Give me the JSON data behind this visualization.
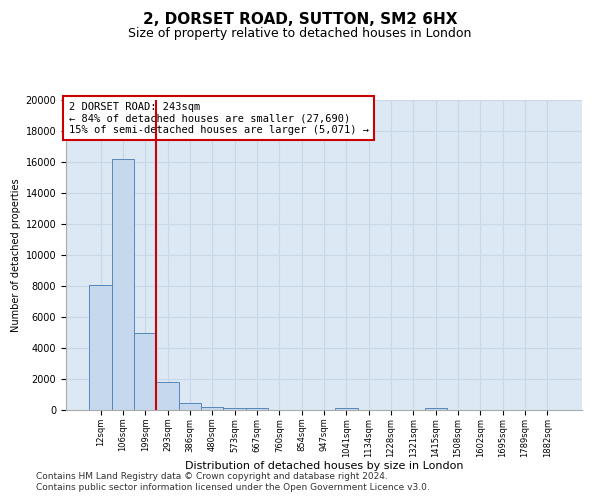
{
  "title1": "2, DORSET ROAD, SUTTON, SM2 6HX",
  "title2": "Size of property relative to detached houses in London",
  "xlabel": "Distribution of detached houses by size in London",
  "ylabel": "Number of detached properties",
  "bin_labels": [
    "12sqm",
    "106sqm",
    "199sqm",
    "293sqm",
    "386sqm",
    "480sqm",
    "573sqm",
    "667sqm",
    "760sqm",
    "854sqm",
    "947sqm",
    "1041sqm",
    "1134sqm",
    "1228sqm",
    "1321sqm",
    "1415sqm",
    "1508sqm",
    "1602sqm",
    "1695sqm",
    "1789sqm",
    "1882sqm"
  ],
  "bar_heights": [
    8050,
    16200,
    5000,
    1800,
    480,
    200,
    150,
    100,
    5,
    5,
    5,
    120,
    5,
    5,
    5,
    110,
    5,
    5,
    5,
    5,
    5
  ],
  "bar_color": "#c5d8ee",
  "bar_edge_color": "#5588bb",
  "grid_color": "#c8d8e8",
  "bg_color": "#dce8f4",
  "vline_color": "#cc0000",
  "annotation_text": "2 DORSET ROAD: 243sqm\n← 84% of detached houses are smaller (27,690)\n15% of semi-detached houses are larger (5,071) →",
  "annotation_box_color": "#ffffff",
  "annotation_box_edge": "#cc0000",
  "ylim": [
    0,
    20000
  ],
  "yticks": [
    0,
    2000,
    4000,
    6000,
    8000,
    10000,
    12000,
    14000,
    16000,
    18000,
    20000
  ],
  "footer1": "Contains HM Land Registry data © Crown copyright and database right 2024.",
  "footer2": "Contains public sector information licensed under the Open Government Licence v3.0.",
  "title1_fontsize": 11,
  "title2_fontsize": 9,
  "annotation_fontsize": 7.5,
  "footer_fontsize": 6.5
}
